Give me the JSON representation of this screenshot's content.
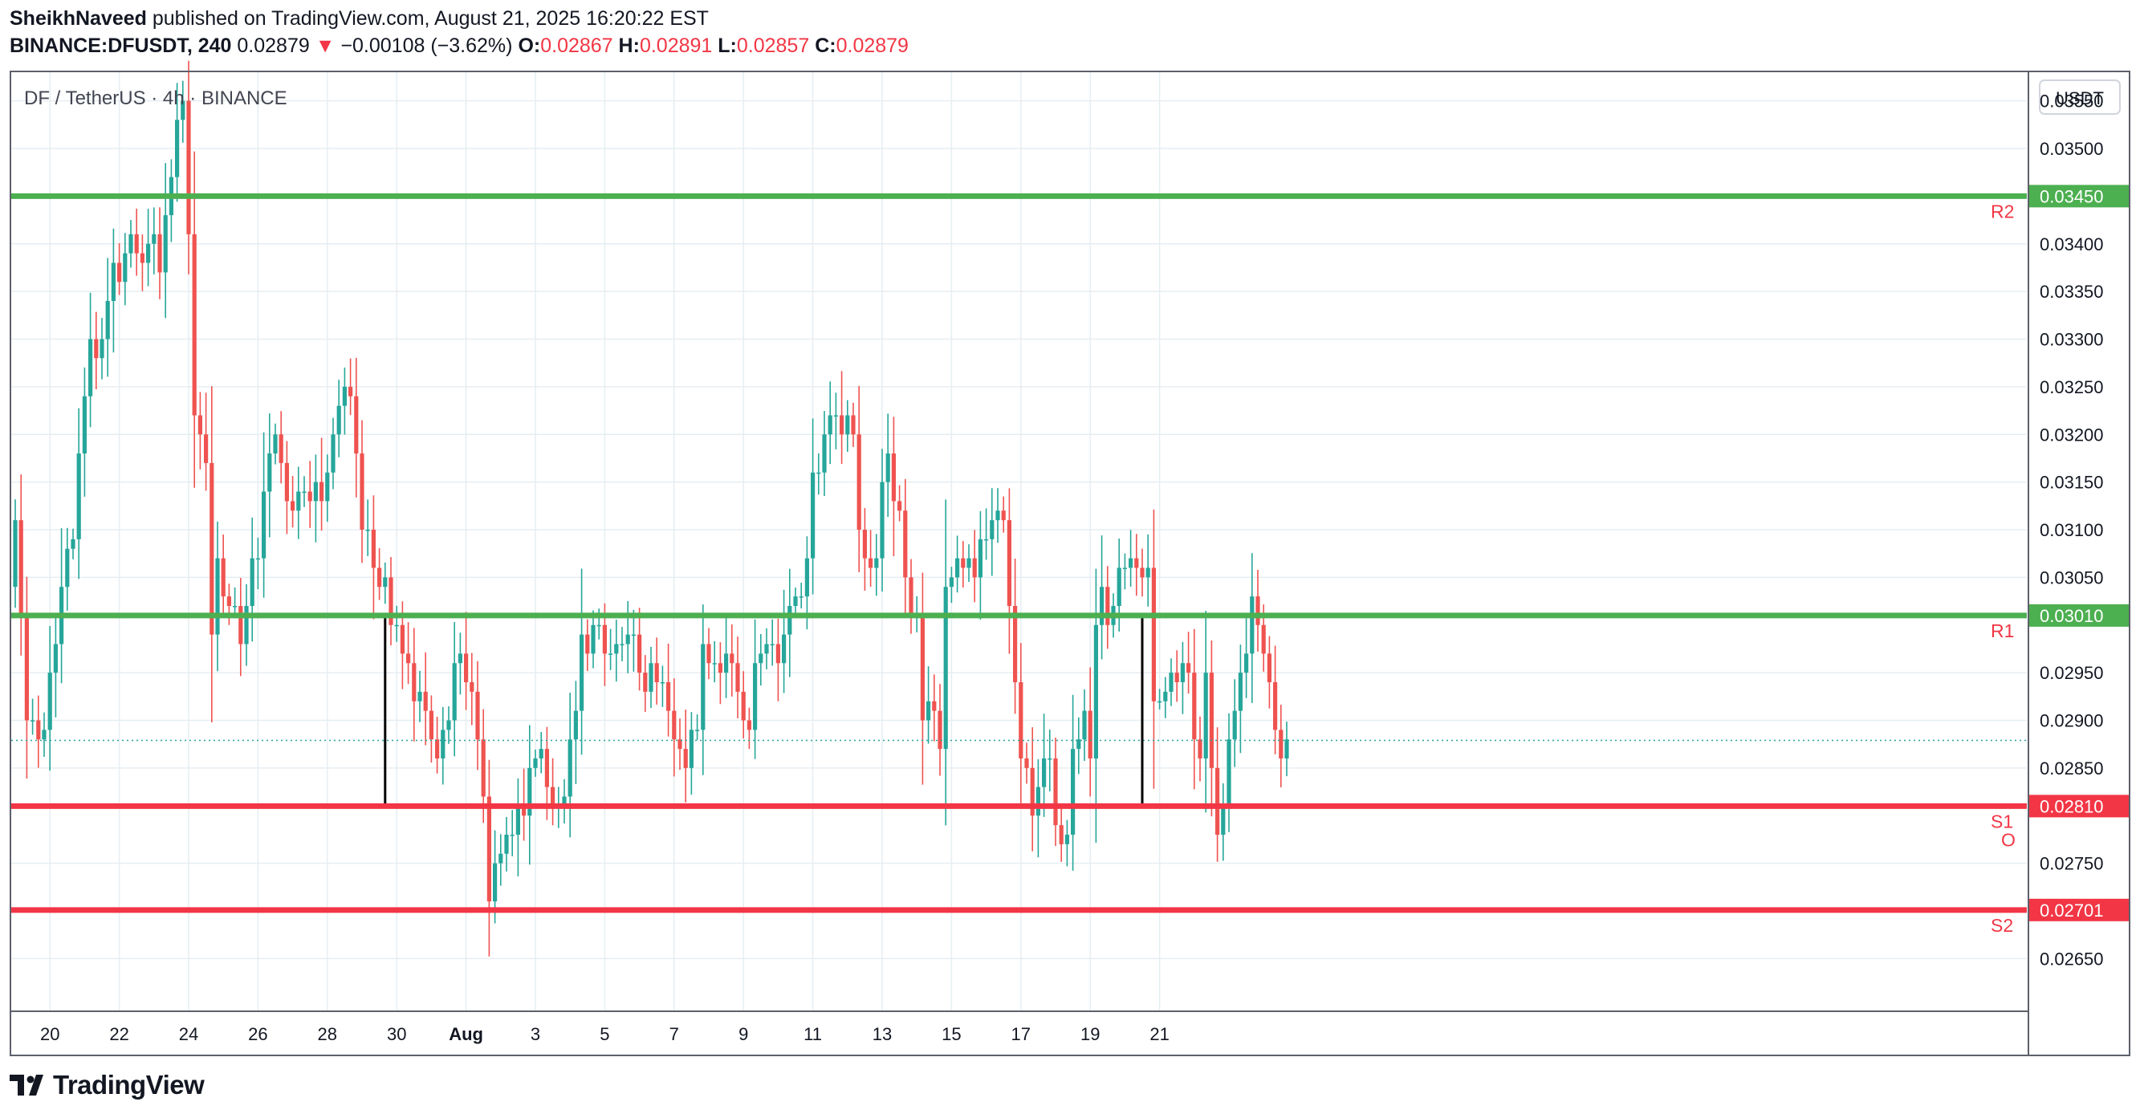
{
  "header": {
    "author": "SheikhNaveed",
    "published_text": "published on TradingView.com, August 21, 2025 16:20:22 EST",
    "symbol": "BINANCE:DFUSDT, 240",
    "last_price": "0.02879",
    "change_arrow": "▼",
    "change": "−0.00108 (−3.62%)",
    "open_label": "O:",
    "open": "0.02867",
    "high_label": "H:",
    "high": "0.02891",
    "low_label": "L:",
    "low": "0.02857",
    "close_label": "C:",
    "close": "0.02879"
  },
  "chart_data": {
    "type": "candlestick",
    "title": "DF / TetherUS · 4h · BINANCE",
    "currency_label": "USDT",
    "ylim": [
      0.0262,
      0.0358
    ],
    "y_ticks": [
      "0.03550",
      "0.03500",
      "0.03400",
      "0.03350",
      "0.03300",
      "0.03250",
      "0.03200",
      "0.03150",
      "0.03100",
      "0.03050",
      "0.02950",
      "0.02900",
      "0.02850",
      "0.02750",
      "0.02650"
    ],
    "x_ticks": [
      {
        "label": "20",
        "bar": 6,
        "bold": false
      },
      {
        "label": "22",
        "bar": 18,
        "bold": false
      },
      {
        "label": "24",
        "bar": 30,
        "bold": false
      },
      {
        "label": "26",
        "bar": 42,
        "bold": false
      },
      {
        "label": "28",
        "bar": 54,
        "bold": false
      },
      {
        "label": "30",
        "bar": 66,
        "bold": false
      },
      {
        "label": "Aug",
        "bar": 78,
        "bold": true
      },
      {
        "label": "3",
        "bar": 90,
        "bold": false
      },
      {
        "label": "5",
        "bar": 102,
        "bold": false
      },
      {
        "label": "7",
        "bar": 114,
        "bold": false
      },
      {
        "label": "9",
        "bar": 126,
        "bold": false
      },
      {
        "label": "11",
        "bar": 138,
        "bold": false
      },
      {
        "label": "13",
        "bar": 150,
        "bold": false
      },
      {
        "label": "15",
        "bar": 162,
        "bold": false
      },
      {
        "label": "17",
        "bar": 174,
        "bold": false
      },
      {
        "label": "19",
        "bar": 186,
        "bold": false
      },
      {
        "label": "21",
        "bar": 198,
        "bold": false
      }
    ],
    "levels": [
      {
        "name": "R2",
        "value": 0.0345,
        "label": "0.03450",
        "color": "#4caf50"
      },
      {
        "name": "R1",
        "value": 0.0301,
        "label": "0.03010",
        "color": "#4caf50"
      },
      {
        "name": "S1",
        "value": 0.0281,
        "label": "0.02810",
        "color": "#f23645"
      },
      {
        "name": "S2",
        "value": 0.02701,
        "label": "0.02701",
        "color": "#f23645"
      }
    ],
    "extra_marker": "O",
    "last_price_value": 0.02879,
    "vertical_markers": [
      {
        "bar": 64,
        "from": 0.0301,
        "to": 0.0281
      },
      {
        "bar": 195,
        "from": 0.0301,
        "to": 0.0281
      }
    ],
    "colors": {
      "up": "#26a69a",
      "down": "#ef5350",
      "grid": "#e6eef2",
      "text": "#131722"
    },
    "closes": [
      0.0311,
      0.0301,
      0.029,
      0.029,
      0.0288,
      0.0289,
      0.0295,
      0.0298,
      0.0304,
      0.0308,
      0.0309,
      0.0318,
      0.0324,
      0.033,
      0.0328,
      0.033,
      0.0334,
      0.0338,
      0.0336,
      0.0339,
      0.0341,
      0.0339,
      0.0338,
      0.034,
      0.0341,
      0.0337,
      0.0343,
      0.0347,
      0.0353,
      0.0355,
      0.0341,
      0.0322,
      0.032,
      0.0317,
      0.0299,
      0.0307,
      0.0303,
      0.0302,
      0.0302,
      0.0298,
      0.0302,
      0.0307,
      0.0307,
      0.0314,
      0.0318,
      0.032,
      0.0317,
      0.0313,
      0.0312,
      0.0314,
      0.0314,
      0.0313,
      0.0315,
      0.0313,
      0.0316,
      0.032,
      0.0323,
      0.0325,
      0.0324,
      0.0318,
      0.031,
      0.031,
      0.0306,
      0.0304,
      0.0305,
      0.03,
      0.03,
      0.0297,
      0.0296,
      0.0292,
      0.0293,
      0.0291,
      0.0288,
      0.0286,
      0.0289,
      0.029,
      0.0296,
      0.0297,
      0.0294,
      0.0293,
      0.0288,
      0.0282,
      0.0271,
      0.0275,
      0.0276,
      0.0278,
      0.0278,
      0.0281,
      0.028,
      0.0285,
      0.0286,
      0.0287,
      0.0283,
      0.0281,
      0.0281,
      0.0282,
      0.0288,
      0.0291,
      0.0299,
      0.0297,
      0.03,
      0.03,
      0.0297,
      0.0297,
      0.0298,
      0.0298,
      0.0299,
      0.0299,
      0.0295,
      0.0293,
      0.0296,
      0.0294,
      0.0294,
      0.0291,
      0.0288,
      0.0287,
      0.0285,
      0.0289,
      0.0289,
      0.0298,
      0.0296,
      0.0296,
      0.0295,
      0.0297,
      0.0296,
      0.0293,
      0.029,
      0.0289,
      0.0296,
      0.0297,
      0.0298,
      0.0298,
      0.0296,
      0.0299,
      0.0302,
      0.0303,
      0.0303,
      0.0307,
      0.0316,
      0.0316,
      0.032,
      0.0322,
      0.0322,
      0.032,
      0.0322,
      0.032,
      0.031,
      0.0307,
      0.0306,
      0.0307,
      0.0315,
      0.0318,
      0.0313,
      0.0312,
      0.0305,
      0.0301,
      0.0301,
      0.029,
      0.0292,
      0.0291,
      0.0287,
      0.0304,
      0.0305,
      0.0307,
      0.0306,
      0.0307,
      0.0305,
      0.0309,
      0.0309,
      0.0311,
      0.0312,
      0.0311,
      0.0302,
      0.0294,
      0.0286,
      0.0285,
      0.028,
      0.0283,
      0.0286,
      0.0286,
      0.0279,
      0.0277,
      0.0278,
      0.0287,
      0.0288,
      0.0291,
      0.0286,
      0.03,
      0.0304,
      0.03,
      0.0302,
      0.0306,
      0.0306,
      0.0307,
      0.0306,
      0.0305,
      0.0306,
      0.0292,
      0.0292,
      0.0293,
      0.0295,
      0.0294,
      0.0296,
      0.0295,
      0.0288,
      0.0286,
      0.0295,
      0.0285,
      0.0278,
      0.0281,
      0.0288,
      0.0291,
      0.0295,
      0.0297,
      0.0303,
      0.03,
      0.0297,
      0.0294,
      0.0289,
      0.0286,
      0.0288
    ],
    "open_first": 0.0304
  },
  "brand": {
    "name": "TradingView"
  }
}
